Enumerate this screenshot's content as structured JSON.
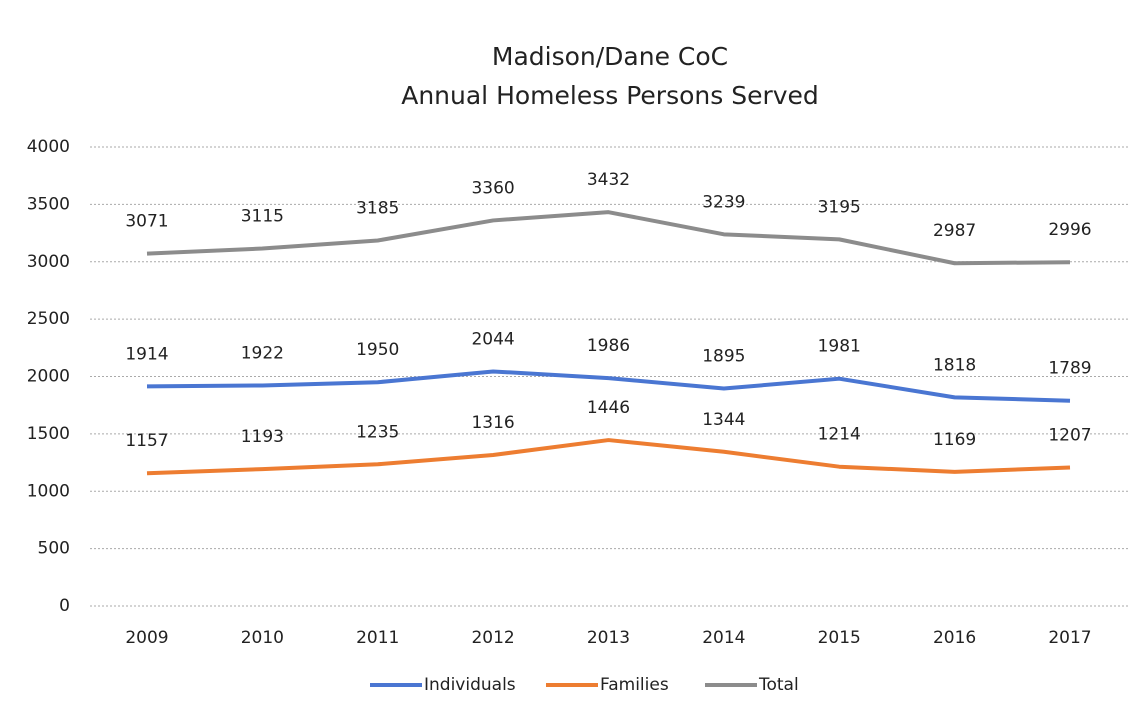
{
  "chart_data": {
    "type": "line",
    "title": [
      "Madison/Dane CoC",
      "Annual Homeless Persons Served"
    ],
    "categories": [
      "2009",
      "2010",
      "2011",
      "2012",
      "2013",
      "2014",
      "2015",
      "2016",
      "2017"
    ],
    "series": [
      {
        "name": "Individuals",
        "color": "#4a76d2",
        "values": [
          1914,
          1922,
          1950,
          2044,
          1986,
          1895,
          1981,
          1818,
          1789
        ]
      },
      {
        "name": "Families",
        "color": "#ed7d31",
        "values": [
          1157,
          1193,
          1235,
          1316,
          1446,
          1344,
          1214,
          1169,
          1207
        ]
      },
      {
        "name": "Total",
        "color": "#8c8c8c",
        "values": [
          3071,
          3115,
          3185,
          3360,
          3432,
          3239,
          3195,
          2987,
          2996
        ]
      }
    ],
    "ylim": [
      0,
      4000
    ],
    "yticks": [
      0,
      500,
      1000,
      1500,
      2000,
      2500,
      3000,
      3500,
      4000
    ],
    "grid": true,
    "legend": "bottom",
    "data_labels": true
  }
}
